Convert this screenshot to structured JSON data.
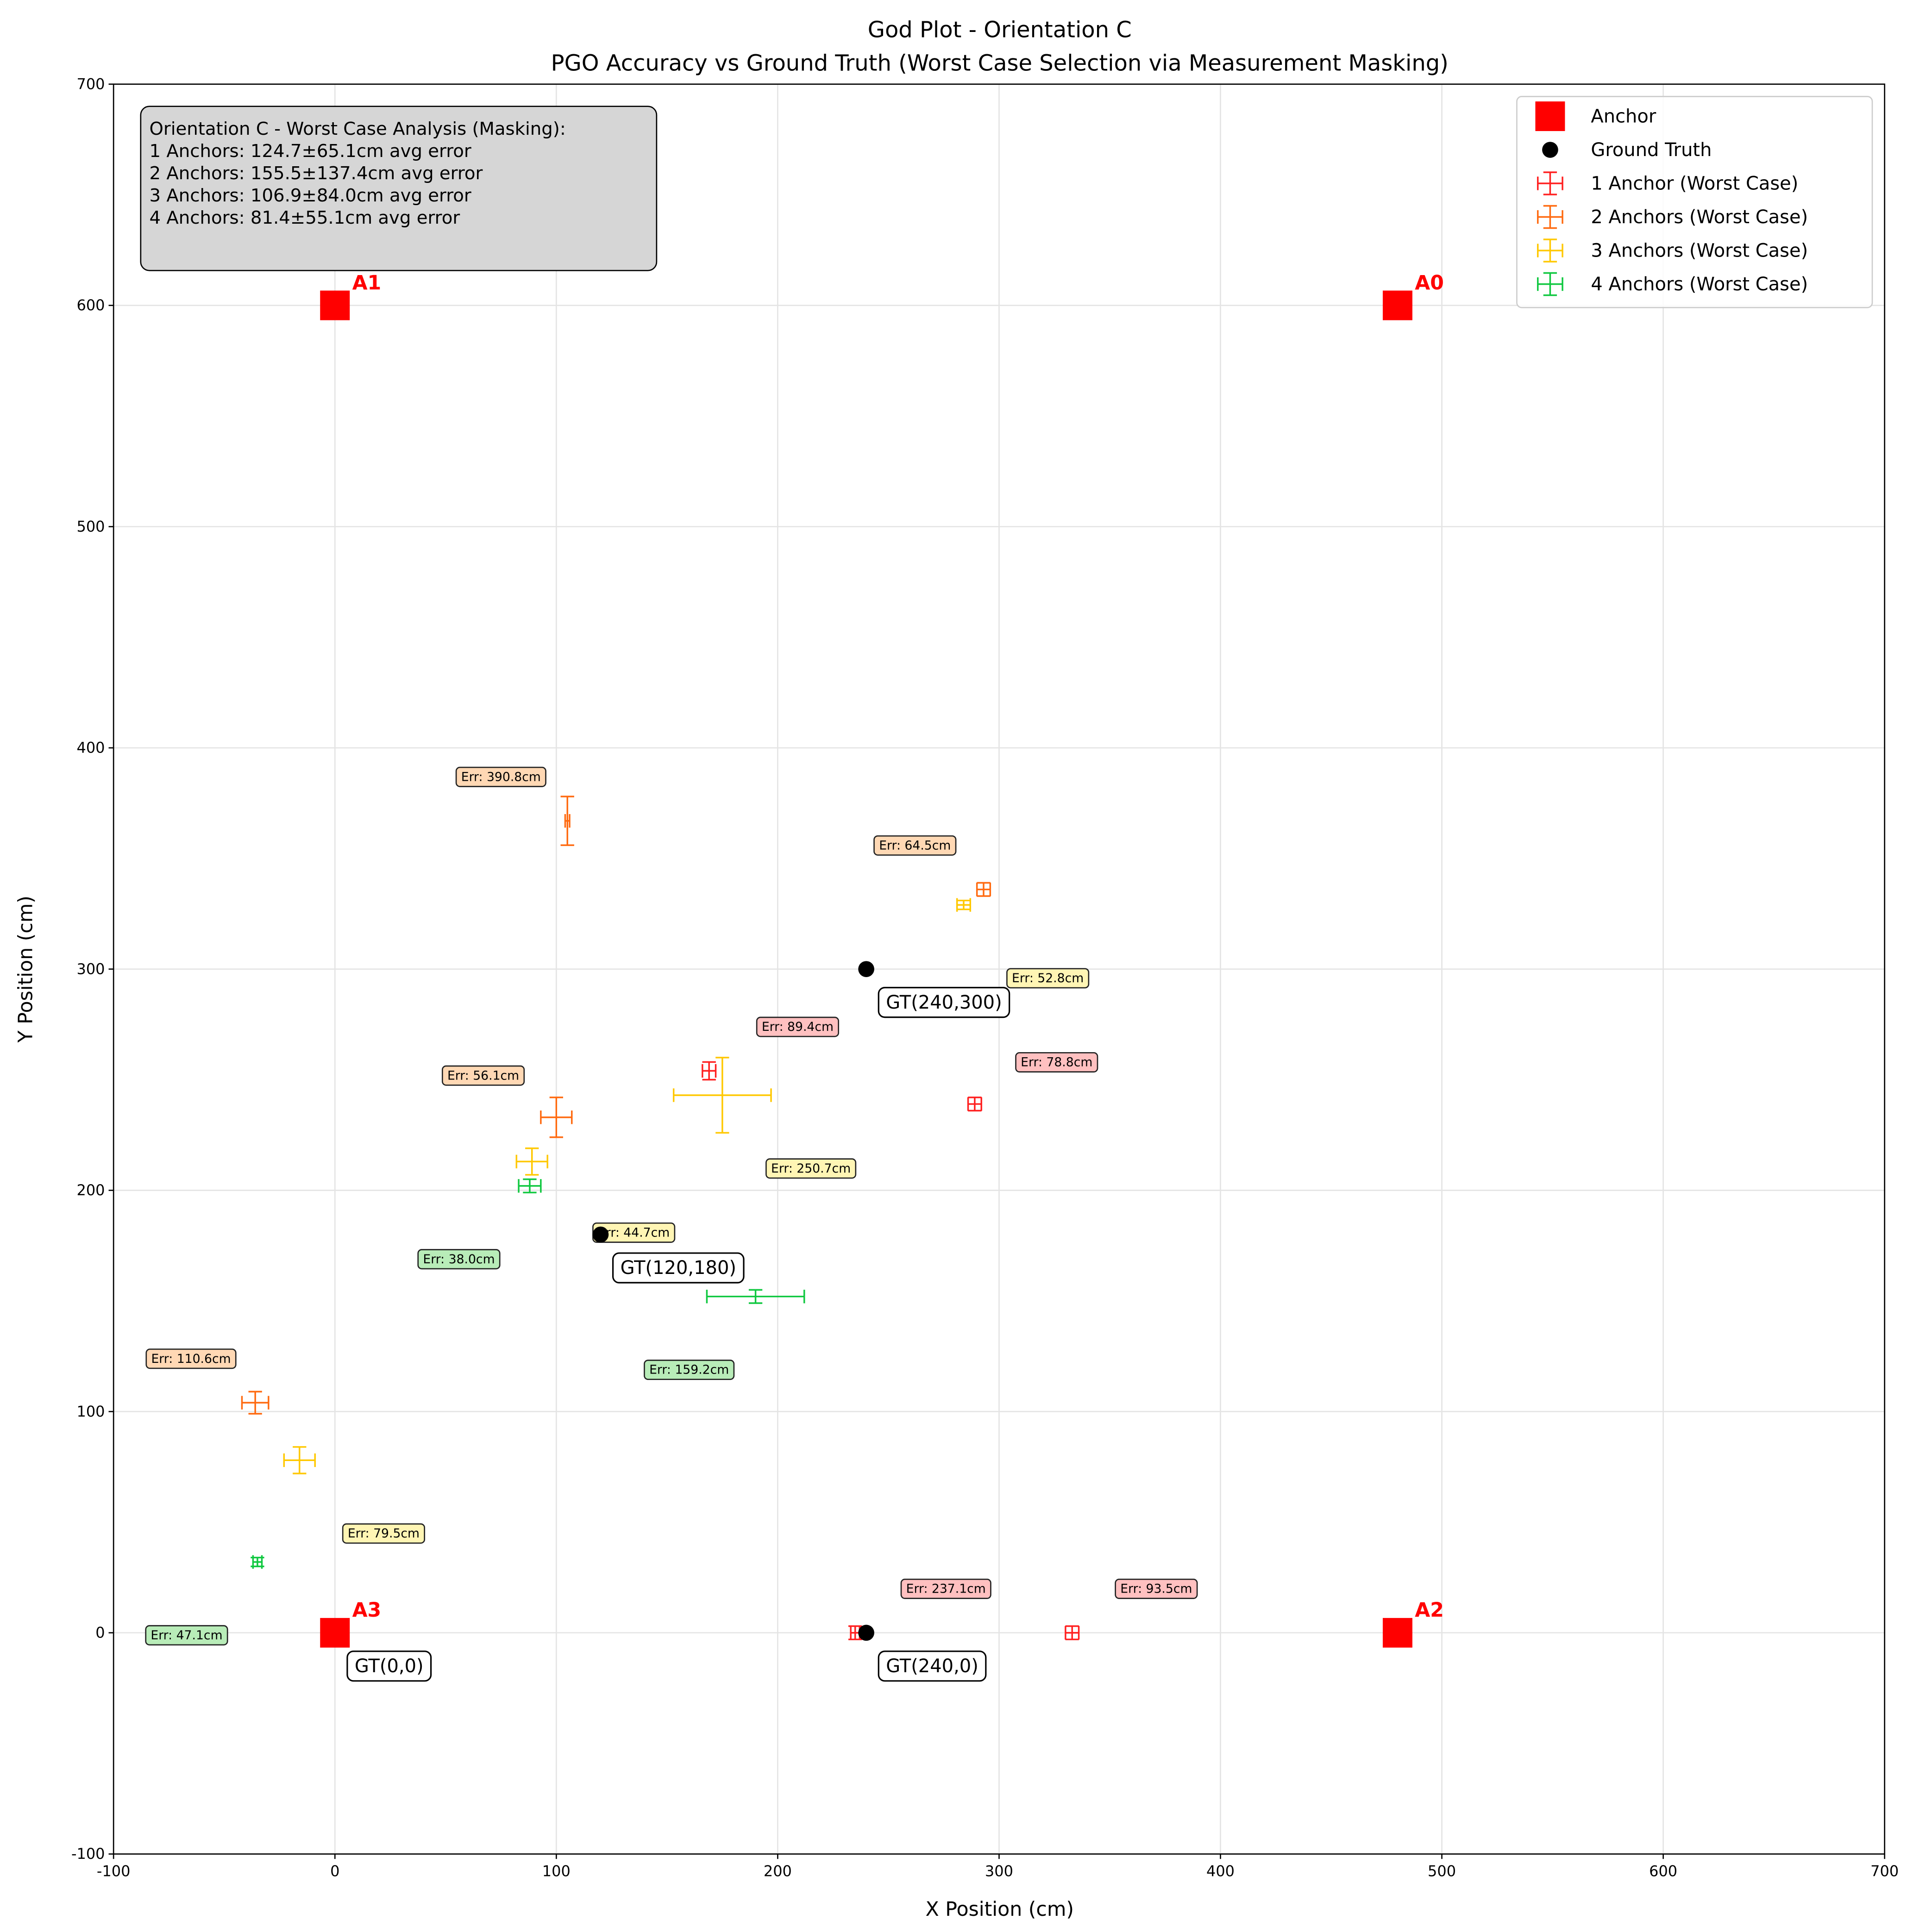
{
  "chart_data": {
    "type": "scatter",
    "title": "God Plot - Orientation C",
    "subtitle": "PGO Accuracy vs Ground Truth (Worst Case Selection via Measurement Masking)",
    "xlabel": "X Position (cm)",
    "ylabel": "Y Position (cm)",
    "xlim": [
      -100,
      700
    ],
    "ylim": [
      -100,
      700
    ],
    "xticks": [
      -100,
      0,
      100,
      200,
      300,
      400,
      500,
      600,
      700
    ],
    "yticks": [
      -100,
      0,
      100,
      200,
      300,
      400,
      500,
      600,
      700
    ],
    "grid": true,
    "legend_placement": "top-right",
    "anchors": {
      "name": "Anchor",
      "color": "#ff0000",
      "points": [
        {
          "label": "A0",
          "x": 480,
          "y": 600
        },
        {
          "label": "A1",
          "x": 0,
          "y": 600
        },
        {
          "label": "A2",
          "x": 480,
          "y": 0
        },
        {
          "label": "A3",
          "x": 0,
          "y": 0
        }
      ]
    },
    "ground_truth": {
      "name": "Ground Truth",
      "color": "#000000",
      "points": [
        {
          "label": "GT(240,300)",
          "x": 240,
          "y": 300
        },
        {
          "label": "GT(120,180)",
          "x": 120,
          "y": 180
        },
        {
          "label": "GT(0,0)",
          "x": 0,
          "y": 0
        },
        {
          "label": "GT(240,0)",
          "x": 240,
          "y": 0
        }
      ]
    },
    "series": [
      {
        "name": "1 Anchor (Worst Case)",
        "color": "#ff2020",
        "label_fill": "#ffc0c0",
        "points": [
          {
            "x": 169,
            "y": 254,
            "xerr": 3,
            "yerr": 4,
            "err_label": "Err: 89.4cm",
            "label_x": 209,
            "label_y": 274
          },
          {
            "x": 289,
            "y": 239,
            "xerr": 3,
            "yerr": 3,
            "err_label": "Err: 78.8cm",
            "label_x": 326,
            "label_y": 258
          },
          {
            "x": 235,
            "y": 0,
            "xerr": 2,
            "yerr": 3,
            "err_label": "Err: 237.1cm",
            "label_x": 276,
            "label_y": 20
          },
          {
            "x": 333,
            "y": 0,
            "xerr": 3,
            "yerr": 3,
            "err_label": "Err: 93.5cm",
            "label_x": 371,
            "label_y": 20
          }
        ]
      },
      {
        "name": "2 Anchors (Worst Case)",
        "color": "#ff6a10",
        "label_fill": "#ffd8b4",
        "points": [
          {
            "x": 105,
            "y": 367,
            "xerr": 1,
            "yerr": 11,
            "err_label": "Err: 390.8cm",
            "label_x": 75,
            "label_y": 387
          },
          {
            "x": 293,
            "y": 336,
            "xerr": 3,
            "yerr": 3,
            "err_label": "Err: 64.5cm",
            "label_x": 262,
            "label_y": 356
          },
          {
            "x": 100,
            "y": 233,
            "xerr": 7,
            "yerr": 9,
            "err_label": "Err: 56.1cm",
            "label_x": 67,
            "label_y": 252
          },
          {
            "x": -36,
            "y": 104,
            "xerr": 6,
            "yerr": 5,
            "err_label": "Err: 110.6cm",
            "label_x": -65,
            "label_y": 124
          }
        ]
      },
      {
        "name": "3 Anchors (Worst Case)",
        "color": "#ffc800",
        "label_fill": "#fff5b4",
        "points": [
          {
            "x": 284,
            "y": 329,
            "xerr": 3,
            "yerr": 2,
            "err_label": "Err: 52.8cm",
            "label_x": 322,
            "label_y": 296
          },
          {
            "x": 175,
            "y": 243,
            "xerr": 22,
            "yerr": 17,
            "err_label": "Err: 250.7cm",
            "label_x": 215,
            "label_y": 210
          },
          {
            "x": 89,
            "y": 213,
            "xerr": 7,
            "yerr": 6,
            "err_label": "Err: 44.7cm",
            "label_x": 135,
            "label_y": 181
          },
          {
            "x": -16,
            "y": 78,
            "xerr": 7,
            "yerr": 6,
            "err_label": "Err: 79.5cm",
            "label_x": 22,
            "label_y": 45
          }
        ]
      },
      {
        "name": "4 Anchors (Worst Case)",
        "color": "#10c840",
        "label_fill": "#b8ecb8",
        "points": [
          {
            "x": 88,
            "y": 202,
            "xerr": 5,
            "yerr": 3,
            "err_label": "Err: 38.0cm",
            "label_x": 56,
            "label_y": 169
          },
          {
            "x": 190,
            "y": 152,
            "xerr": 22,
            "yerr": 3,
            "err_label": "Err: 159.2cm",
            "label_x": 160,
            "label_y": 119
          },
          {
            "x": -35,
            "y": 32,
            "xerr": 2,
            "yerr": 2,
            "err_label": "Err: 47.1cm",
            "label_x": -67,
            "label_y": -1
          }
        ]
      }
    ],
    "summary_box": {
      "lines": [
        "Orientation C - Worst Case Analysis (Masking):",
        "1 Anchors: 124.7±65.1cm avg error",
        "2 Anchors: 155.5±137.4cm avg error",
        "3 Anchors: 106.9±84.0cm avg error",
        "4 Anchors: 81.4±55.1cm avg error"
      ]
    }
  }
}
